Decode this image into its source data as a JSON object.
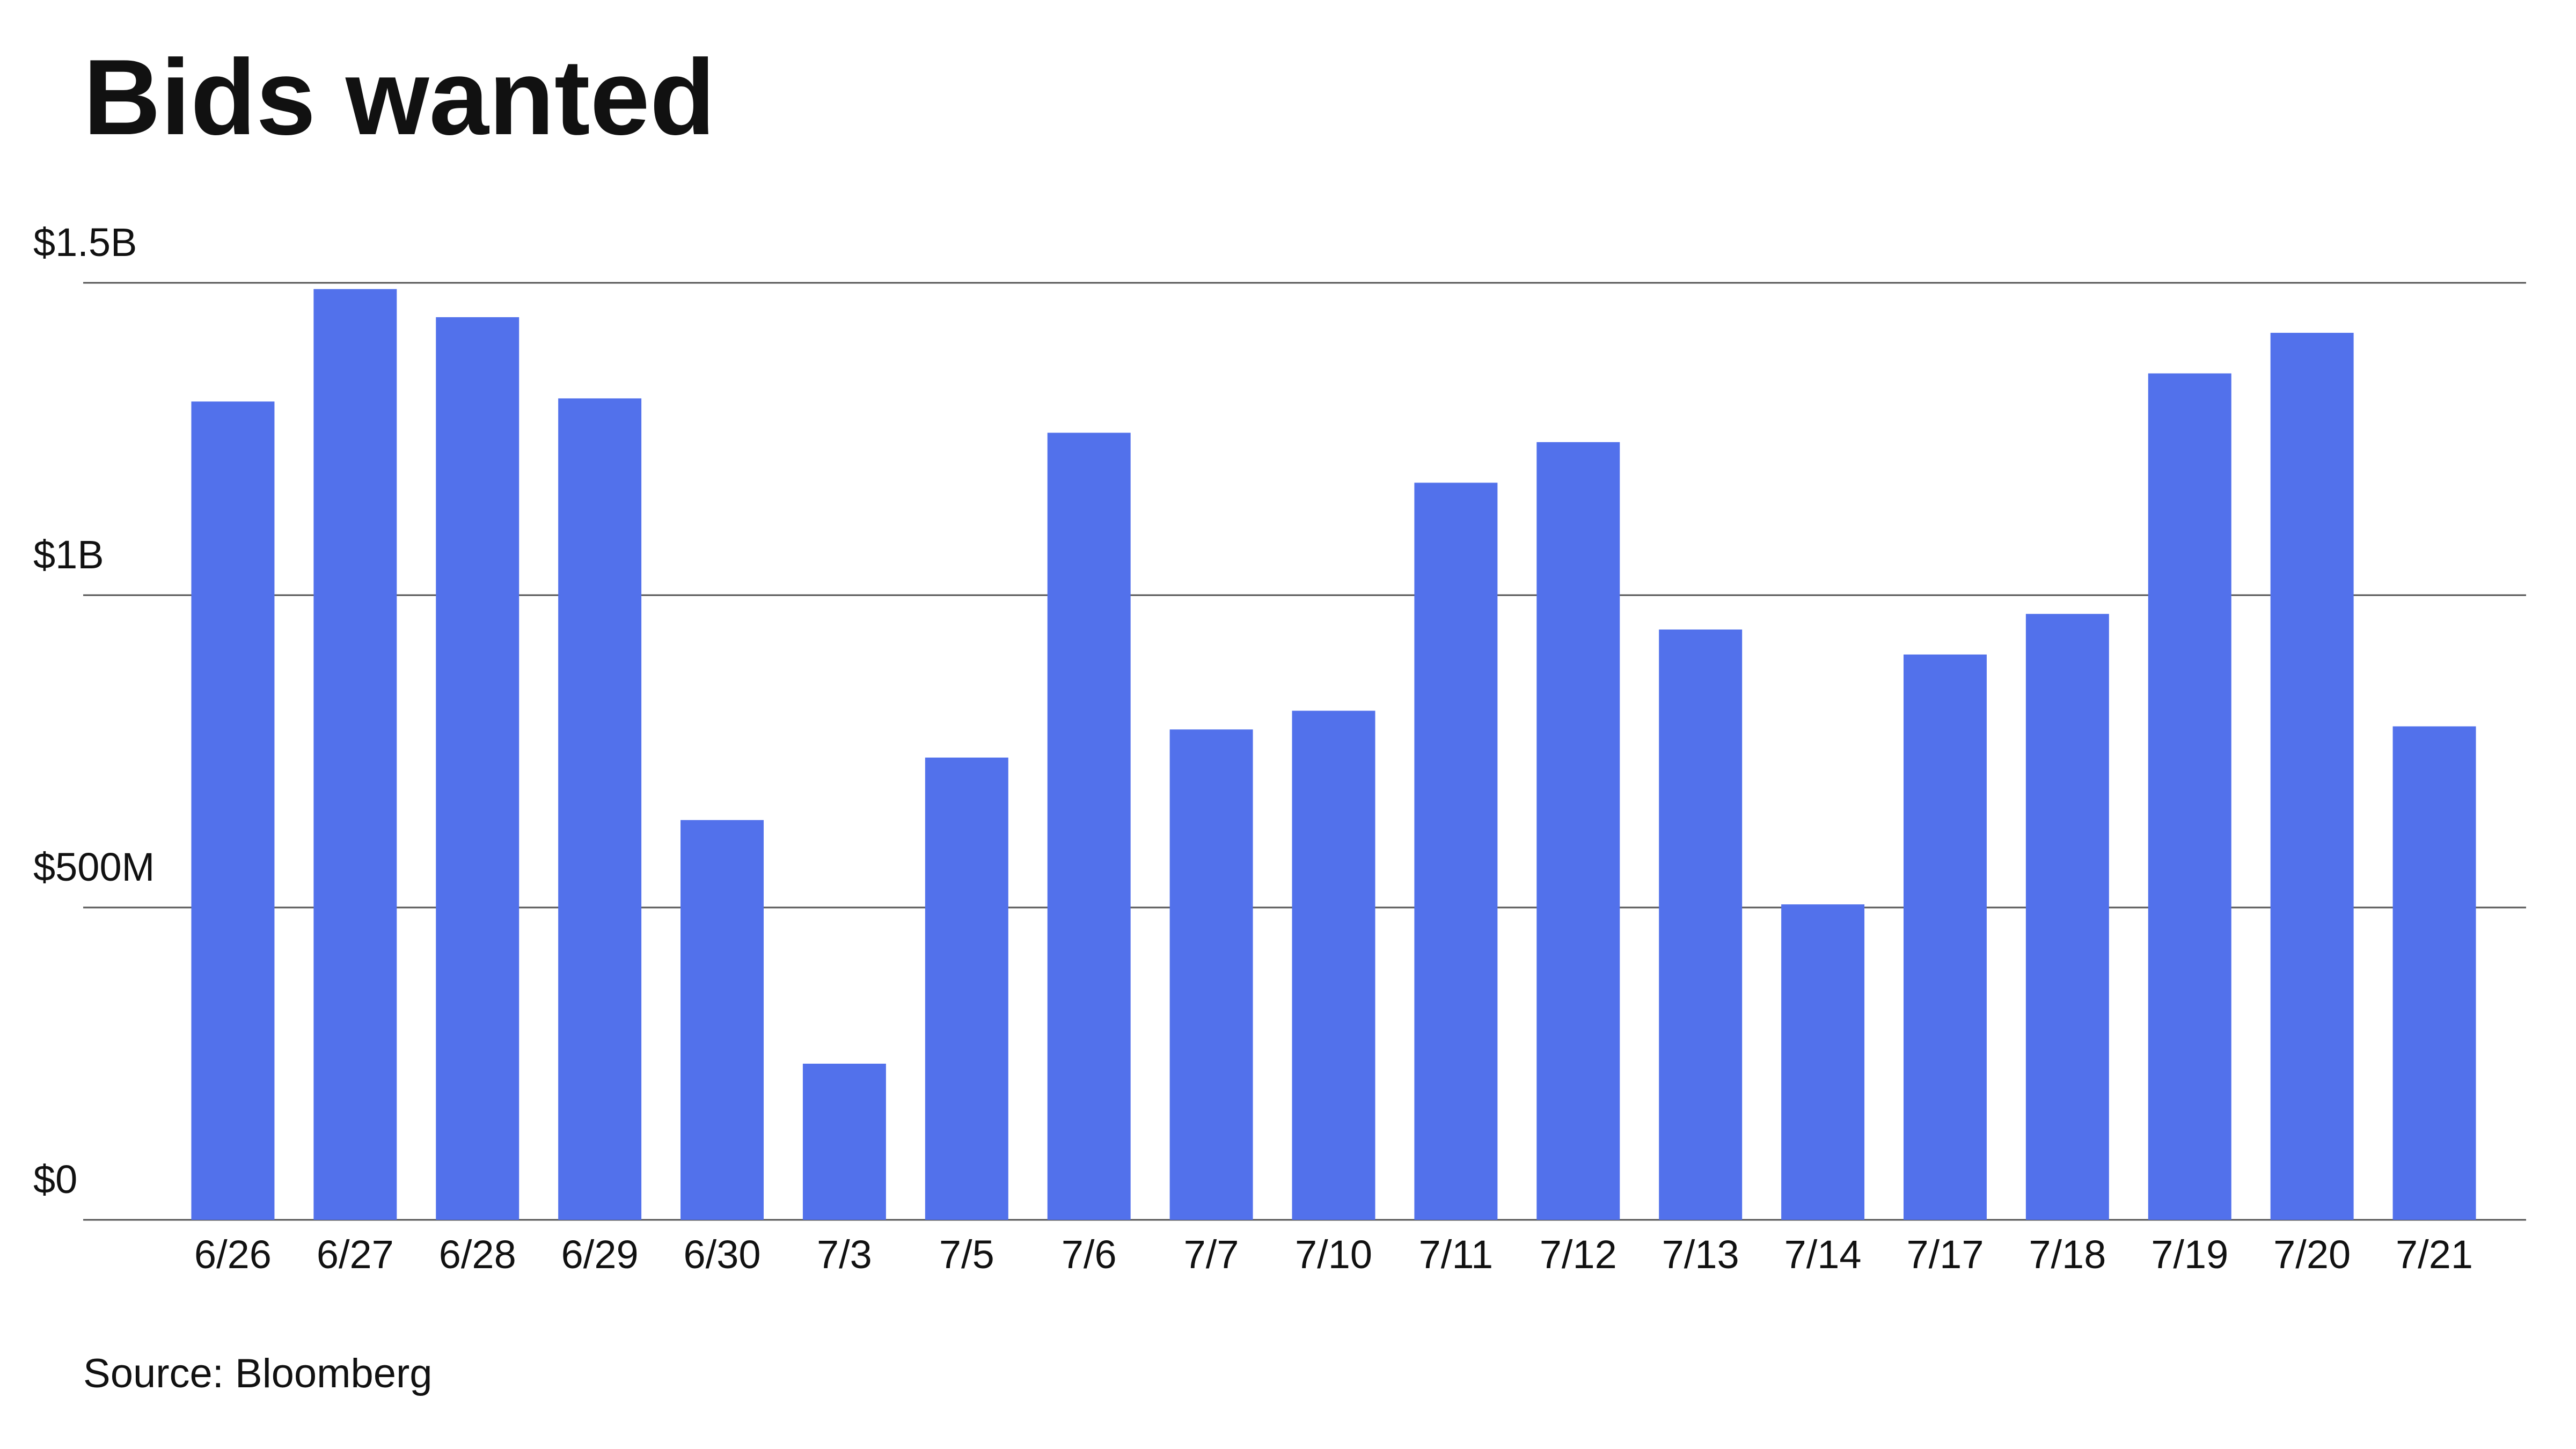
{
  "chart_data": {
    "type": "bar",
    "title": "Bids wanted",
    "source": "Source: Bloomberg",
    "categories": [
      "6/26",
      "6/27",
      "6/28",
      "6/29",
      "6/30",
      "7/3",
      "7/5",
      "7/6",
      "7/7",
      "7/10",
      "7/11",
      "7/12",
      "7/13",
      "7/14",
      "7/17",
      "7/18",
      "7/19",
      "7/20",
      "7/21"
    ],
    "values": [
      1310000000,
      1490000000,
      1445000000,
      1315000000,
      640000000,
      250000000,
      740000000,
      1260000000,
      785000000,
      815000000,
      1180000000,
      1245000000,
      945000000,
      505000000,
      905000000,
      970000000,
      1355000000,
      1420000000,
      790000000
    ],
    "color": "#5271eb",
    "ylim": [
      0,
      1500000000
    ],
    "yticks": [
      {
        "value": 0,
        "label": "$0"
      },
      {
        "value": 500000000,
        "label": "$500M"
      },
      {
        "value": 1000000000,
        "label": "$1B"
      },
      {
        "value": 1500000000,
        "label": "$1.5B"
      }
    ],
    "grid": true
  }
}
